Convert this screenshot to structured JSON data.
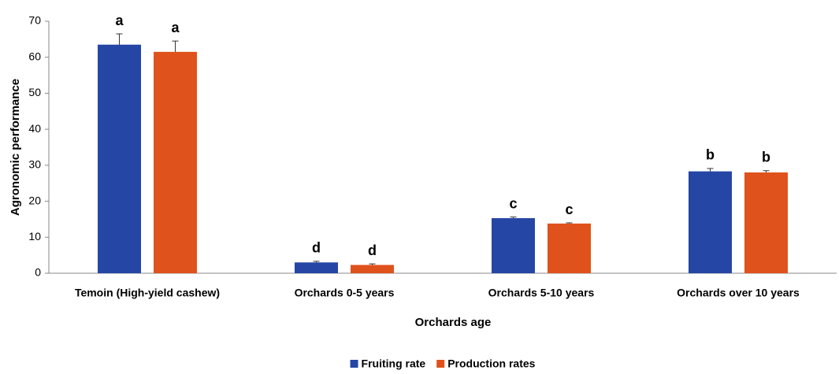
{
  "chart_data": {
    "type": "bar",
    "x_label": "Orchards age",
    "y_label": "Agronomic performance",
    "categories": [
      "Temoin (High-yield cashew)",
      "Orchards 0-5 years",
      "Orchards 5-10 years",
      "Orchards over 10 years"
    ],
    "series": [
      {
        "name": "Fruiting rate",
        "color": "#2546a5",
        "values": [
          63.5,
          3,
          15.3,
          28.3
        ],
        "errors": [
          3,
          0.3,
          0.3,
          0.8
        ],
        "letters": [
          "a",
          "d",
          "c",
          "b"
        ]
      },
      {
        "name": "Production rates",
        "color": "#e0521b",
        "values": [
          61.5,
          2.3,
          13.8,
          28
        ],
        "errors": [
          3,
          0.3,
          0.2,
          0.5
        ],
        "letters": [
          "a",
          "d",
          "c",
          "b"
        ]
      }
    ],
    "ylim": [
      0,
      70
    ],
    "yticks": [
      0,
      10,
      20,
      30,
      40,
      50,
      60,
      70
    ],
    "legend": "bottom"
  }
}
